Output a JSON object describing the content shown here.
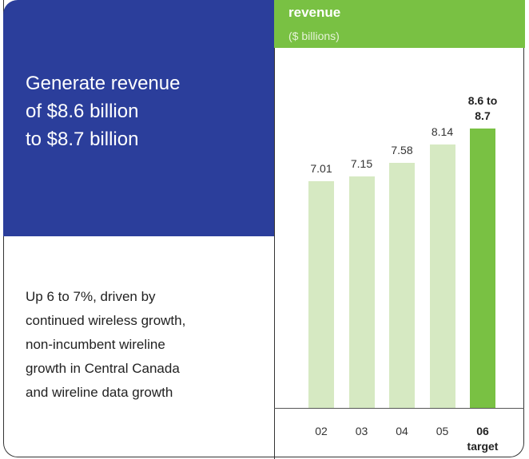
{
  "headline": [
    "Generate revenue",
    "of $8.6 billion",
    "to $8.7 billion"
  ],
  "body": [
    "Up 6 to 7%, driven by",
    "continued wireless growth,",
    "non-incumbent wireline",
    "growth in Central Canada",
    "and wireline data growth"
  ],
  "chart_data": {
    "type": "bar",
    "title": "revenue",
    "subtitle": "($ billions)",
    "categories": [
      "02",
      "03",
      "04",
      "05",
      "06"
    ],
    "values": [
      7.01,
      7.15,
      7.58,
      8.14,
      8.65
    ],
    "value_labels": [
      "7.01",
      "7.15",
      "7.58",
      "8.14",
      "8.6 to 8.7"
    ],
    "target_label": "target",
    "color": "#d6e9c2",
    "highlight_color": "#79c143"
  }
}
